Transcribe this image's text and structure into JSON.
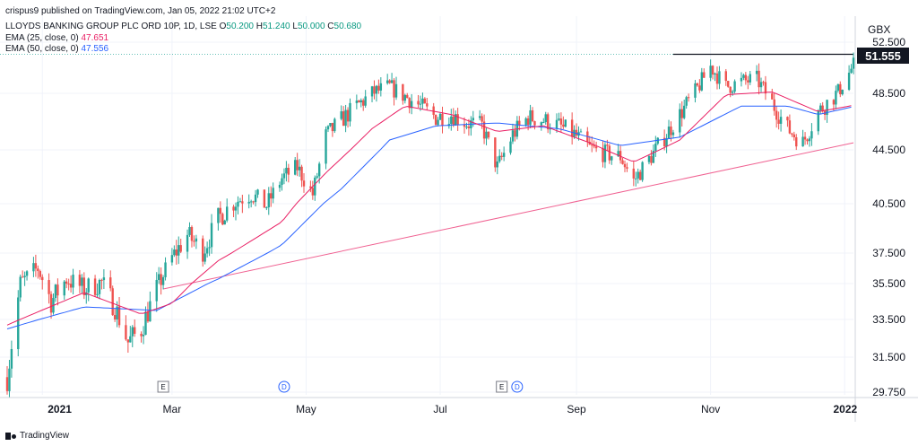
{
  "header": {
    "published": "crispus9 published on TradingView.com, Jan 05, 2022 21:02 UTC+2",
    "symbol": "LLOYDS BANKING GROUP PLC ORD 10P, 1D, LSE",
    "ohlc": [
      {
        "k": "O",
        "v": "50.200"
      },
      {
        "k": "H",
        "v": "51.240"
      },
      {
        "k": "L",
        "v": "50.000"
      },
      {
        "k": "C",
        "v": "50.680"
      }
    ],
    "ema25_label": "EMA (25, close, 0)",
    "ema25_value": "47.651",
    "ema50_label": "EMA (50, close, 0)",
    "ema50_value": "47.556"
  },
  "currency": "GBX",
  "last_price": "51.555",
  "footer": {
    "brand": "TradingView"
  },
  "colors": {
    "up": "#26a69a",
    "down": "#ef5350",
    "ema25": "#e91e63",
    "ema50": "#2962ff",
    "trendline": "#f06292",
    "resistance": "#131722",
    "grid": "#f0f3fa"
  },
  "chart_data": {
    "type": "candlestick",
    "x_range": [
      "2020-12-16",
      "2022-01-05"
    ],
    "yticks": [
      52.5,
      48.5,
      44.5,
      40.5,
      37.5,
      35.5,
      33.5,
      31.5,
      29.75
    ],
    "ytick_labels": [
      "52.500",
      "48.500",
      "44.500",
      "40.500",
      "37.500",
      "35.500",
      "33.500",
      "31.500",
      "29.750"
    ],
    "xticks": [
      {
        "date": "2021-01-01",
        "label": "2021",
        "bold": true
      },
      {
        "date": "2021-03-01",
        "label": "Mar",
        "bold": false
      },
      {
        "date": "2021-05-01",
        "label": "May",
        "bold": false
      },
      {
        "date": "2021-07-01",
        "label": "Jul",
        "bold": false
      },
      {
        "date": "2021-09-01",
        "label": "Sep",
        "bold": false
      },
      {
        "date": "2021-11-01",
        "label": "Nov",
        "bold": false
      },
      {
        "date": "2022-01-01",
        "label": "2022",
        "bold": true
      }
    ],
    "markers": [
      {
        "date": "2021-02-25",
        "label": "E"
      },
      {
        "date": "2021-04-21",
        "label": "D"
      },
      {
        "date": "2021-07-29",
        "label": "E"
      },
      {
        "date": "2021-08-05",
        "label": "D"
      }
    ],
    "price_path": [
      [
        "2020-12-16",
        30.5
      ],
      [
        "2020-12-22",
        35.5
      ],
      [
        "2020-12-30",
        36.5
      ],
      [
        "2021-01-05",
        34.5
      ],
      [
        "2021-01-12",
        35.8
      ],
      [
        "2021-01-20",
        35.2
      ],
      [
        "2021-01-28",
        35.6
      ],
      [
        "2021-02-03",
        34.2
      ],
      [
        "2021-02-09",
        32.3
      ],
      [
        "2021-02-15",
        33.0
      ],
      [
        "2021-02-22",
        35.2
      ],
      [
        "2021-03-01",
        37.2
      ],
      [
        "2021-03-08",
        38.6
      ],
      [
        "2021-03-15",
        37.6
      ],
      [
        "2021-03-22",
        39.6
      ],
      [
        "2021-03-29",
        40.6
      ],
      [
        "2021-04-06",
        41.2
      ],
      [
        "2021-04-13",
        40.4
      ],
      [
        "2021-04-20",
        42.4
      ],
      [
        "2021-04-27",
        43.2
      ],
      [
        "2021-05-04",
        41.2
      ],
      [
        "2021-05-10",
        45.5
      ],
      [
        "2021-05-17",
        46.6
      ],
      [
        "2021-05-24",
        47.6
      ],
      [
        "2021-06-01",
        48.6
      ],
      [
        "2021-06-08",
        49.0
      ],
      [
        "2021-06-15",
        48.3
      ],
      [
        "2021-06-22",
        47.6
      ],
      [
        "2021-06-29",
        46.8
      ],
      [
        "2021-07-06",
        47.0
      ],
      [
        "2021-07-13",
        46.4
      ],
      [
        "2021-07-20",
        46.2
      ],
      [
        "2021-07-27",
        43.2
      ],
      [
        "2021-08-03",
        45.6
      ],
      [
        "2021-08-10",
        46.8
      ],
      [
        "2021-08-17",
        46.6
      ],
      [
        "2021-08-24",
        46.2
      ],
      [
        "2021-08-31",
        45.6
      ],
      [
        "2021-09-07",
        44.6
      ],
      [
        "2021-09-14",
        44.2
      ],
      [
        "2021-09-21",
        44.0
      ],
      [
        "2021-09-27",
        42.2
      ],
      [
        "2021-10-04",
        43.8
      ],
      [
        "2021-10-11",
        45.4
      ],
      [
        "2021-10-18",
        47.0
      ],
      [
        "2021-10-25",
        48.6
      ],
      [
        "2021-11-01",
        50.6
      ],
      [
        "2021-11-08",
        49.0
      ],
      [
        "2021-11-15",
        49.4
      ],
      [
        "2021-11-22",
        49.6
      ],
      [
        "2021-11-29",
        47.8
      ],
      [
        "2021-12-06",
        46.0
      ],
      [
        "2021-12-13",
        45.0
      ],
      [
        "2021-12-20",
        47.2
      ],
      [
        "2021-12-29",
        48.6
      ],
      [
        "2022-01-05",
        50.7
      ]
    ],
    "ema25_path": [
      [
        "2020-12-16",
        33.2
      ],
      [
        "2021-01-20",
        35.0
      ],
      [
        "2021-02-15",
        33.8
      ],
      [
        "2021-03-01",
        34.4
      ],
      [
        "2021-03-22",
        37.0
      ],
      [
        "2021-04-20",
        39.4
      ],
      [
        "2021-05-10",
        42.8
      ],
      [
        "2021-05-31",
        46.0
      ],
      [
        "2021-06-15",
        47.6
      ],
      [
        "2021-07-06",
        47.0
      ],
      [
        "2021-07-27",
        45.8
      ],
      [
        "2021-08-17",
        46.2
      ],
      [
        "2021-09-07",
        45.0
      ],
      [
        "2021-09-27",
        43.6
      ],
      [
        "2021-10-18",
        45.2
      ],
      [
        "2021-11-08",
        48.4
      ],
      [
        "2021-11-29",
        48.6
      ],
      [
        "2021-12-20",
        47.2
      ],
      [
        "2022-01-05",
        47.65
      ]
    ],
    "ema50_path": [
      [
        "2020-12-16",
        33.0
      ],
      [
        "2021-01-20",
        34.2
      ],
      [
        "2021-02-22",
        34.0
      ],
      [
        "2021-03-22",
        35.8
      ],
      [
        "2021-04-20",
        38.0
      ],
      [
        "2021-05-17",
        41.6
      ],
      [
        "2021-06-08",
        45.2
      ],
      [
        "2021-06-29",
        46.2
      ],
      [
        "2021-07-27",
        46.4
      ],
      [
        "2021-08-24",
        46.0
      ],
      [
        "2021-09-21",
        44.8
      ],
      [
        "2021-10-18",
        45.4
      ],
      [
        "2021-11-15",
        47.6
      ],
      [
        "2021-12-06",
        47.6
      ],
      [
        "2021-12-20",
        47.0
      ],
      [
        "2022-01-05",
        47.556
      ]
    ],
    "trendline": {
      "from": [
        "2021-02-25",
        35.2
      ],
      "to": [
        "2022-01-05",
        45.0
      ]
    },
    "resistance": {
      "from": [
        "2021-10-15",
        51.555
      ],
      "to": [
        "2022-01-05",
        51.555
      ]
    },
    "last_price_line": 51.555
  }
}
